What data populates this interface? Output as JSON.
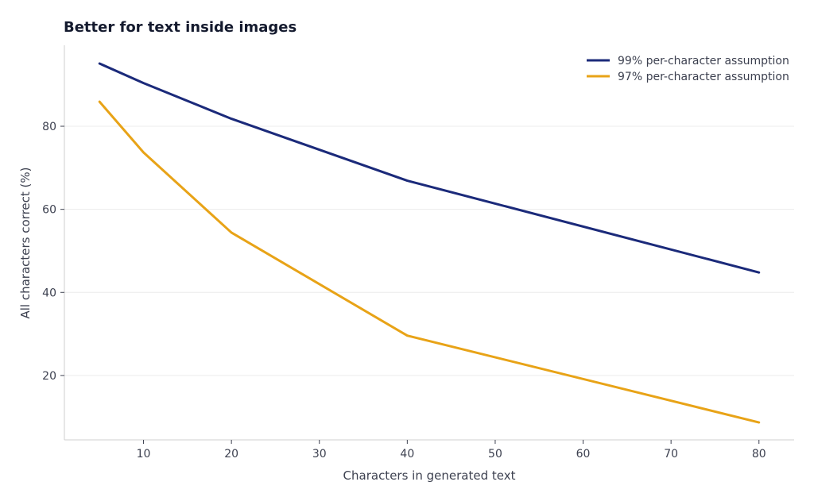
{
  "chart_data": {
    "type": "line",
    "title": "Better for text inside images",
    "xlabel": "Characters in generated text",
    "ylabel": "All characters correct (%)",
    "xlim": [
      1,
      84
    ],
    "ylim": [
      4.5,
      99.5
    ],
    "xticks": [
      10,
      20,
      30,
      40,
      50,
      60,
      70,
      80
    ],
    "yticks": [
      20,
      40,
      60,
      80
    ],
    "grid": "horizontal",
    "legend_position": "top-right",
    "x": [
      5,
      10,
      20,
      40,
      80
    ],
    "series": [
      {
        "name": "99% per-character assumption",
        "color": "#1b2a7a",
        "values": [
          95.1,
          90.4,
          81.8,
          66.9,
          44.8
        ]
      },
      {
        "name": "97% per-character assumption",
        "color": "#e8a317",
        "values": [
          85.9,
          73.7,
          54.4,
          29.6,
          8.7
        ]
      }
    ]
  }
}
